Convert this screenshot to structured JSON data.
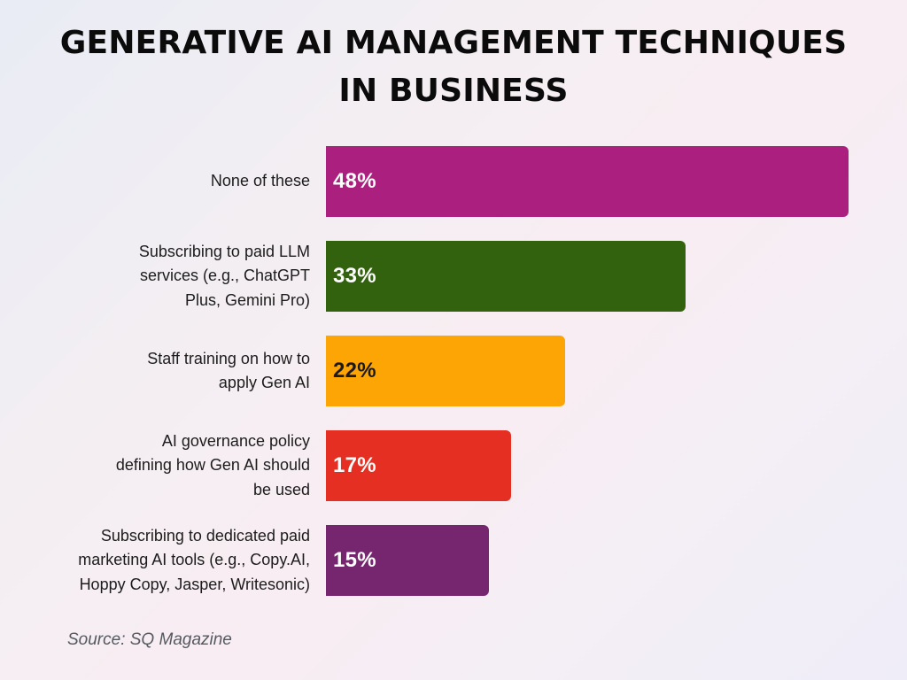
{
  "title": {
    "line1": "GENERATIVE AI MANAGEMENT TECHNIQUES",
    "line2": "IN BUSINESS"
  },
  "source": "Source: SQ Magazine",
  "bars": [
    {
      "label_lines": [
        "None of these"
      ],
      "value": 48,
      "value_label": "48%",
      "color": "#ab1f7e",
      "text_color": "#ffffff"
    },
    {
      "label_lines": [
        "Subscribing to paid LLM",
        "services (e.g., ChatGPT",
        "Plus, Gemini Pro)"
      ],
      "value": 33,
      "value_label": "33%",
      "color": "#33620f",
      "text_color": "#ffffff"
    },
    {
      "label_lines": [
        "Staff training on how to",
        "apply Gen AI"
      ],
      "value": 22,
      "value_label": "22%",
      "color": "#fca504",
      "text_color": "#1a1a1a"
    },
    {
      "label_lines": [
        "AI governance policy",
        "defining how Gen AI should",
        "be used"
      ],
      "value": 17,
      "value_label": "17%",
      "color": "#e52f22",
      "text_color": "#ffffff"
    },
    {
      "label_lines": [
        "Subscribing to dedicated paid",
        "marketing AI tools (e.g., Copy.AI,",
        "Hoppy Copy, Jasper, Writesonic)"
      ],
      "value": 15,
      "value_label": "15%",
      "color": "#75266f",
      "text_color": "#ffffff"
    }
  ],
  "chart_data": {
    "type": "bar",
    "orientation": "horizontal",
    "title": "GENERATIVE AI MANAGEMENT TECHNIQUES IN BUSINESS",
    "categories": [
      "None of these",
      "Subscribing to paid LLM services (e.g., ChatGPT Plus, Gemini Pro)",
      "Staff training on how to apply Gen AI",
      "AI governance policy defining how Gen AI should be used",
      "Subscribing to dedicated paid marketing AI tools (e.g., Copy.AI, Hoppy Copy, Jasper, Writesonic)"
    ],
    "values": [
      48,
      33,
      22,
      17,
      15
    ],
    "unit": "%",
    "colors": [
      "#ab1f7e",
      "#33620f",
      "#fca504",
      "#e52f22",
      "#75266f"
    ],
    "data_labels": [
      "48%",
      "33%",
      "22%",
      "17%",
      "15%"
    ],
    "xlabel": "",
    "ylabel": "",
    "grid": false,
    "legend": null,
    "annotations": [
      "Source: SQ Magazine"
    ]
  }
}
